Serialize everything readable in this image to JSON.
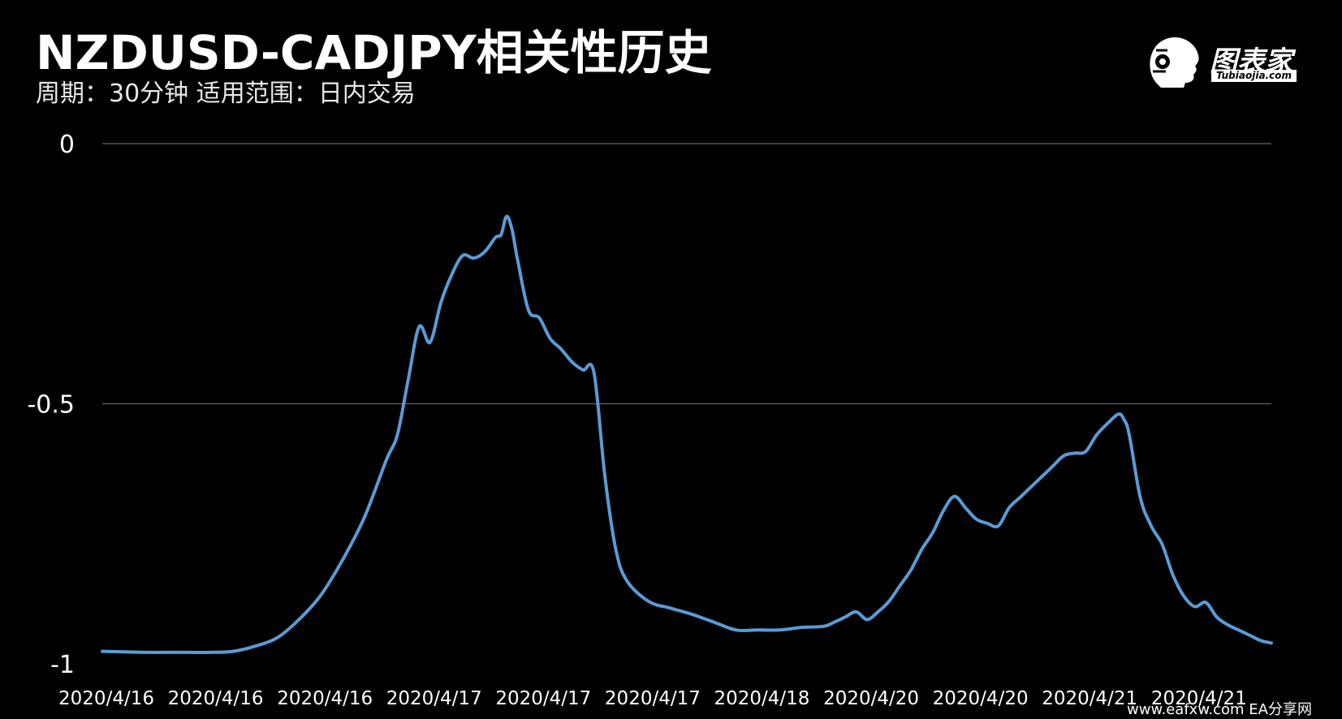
{
  "header": {
    "title": "NZDUSD-CADJPY相关性历史",
    "subtitle": "周期：30分钟  适用范围：日内交易"
  },
  "logo": {
    "name": "图表家",
    "sub": "Tubiaojia.com"
  },
  "watermark": "www.eafxw.com   EA分享网",
  "colors": {
    "background": "#000000",
    "line": "#5b9bd5",
    "grid": "#555555",
    "text": "#ffffff"
  },
  "chart_data": {
    "type": "line",
    "title": "NZDUSD-CADJPY相关性历史",
    "xlabel": "",
    "ylabel": "",
    "ylim": [
      -1,
      0
    ],
    "yticks": [
      {
        "value": 0,
        "label": "0"
      },
      {
        "value": -0.5,
        "label": "-0.5"
      },
      {
        "value": -1,
        "label": "-1"
      }
    ],
    "xticks": [
      {
        "x": 0,
        "label": "2020/4/16"
      },
      {
        "x": 10,
        "label": "2020/4/16"
      },
      {
        "x": 20,
        "label": "2020/4/16"
      },
      {
        "x": 30,
        "label": "2020/4/17"
      },
      {
        "x": 40,
        "label": "2020/4/17"
      },
      {
        "x": 50,
        "label": "2020/4/17"
      },
      {
        "x": 60,
        "label": "2020/4/18"
      },
      {
        "x": 70,
        "label": "2020/4/20"
      },
      {
        "x": 80,
        "label": "2020/4/20"
      },
      {
        "x": 90,
        "label": "2020/4/21"
      },
      {
        "x": 100,
        "label": "2020/4/21"
      }
    ],
    "grid": true,
    "legend": "none",
    "series": [
      {
        "points": [
          [
            0,
            -0.976
          ],
          [
            2,
            -0.977
          ],
          [
            4,
            -0.978
          ],
          [
            6,
            -0.978
          ],
          [
            8,
            -0.978
          ],
          [
            10,
            -0.978
          ],
          [
            12,
            -0.976
          ],
          [
            14,
            -0.966
          ],
          [
            16,
            -0.95
          ],
          [
            18,
            -0.915
          ],
          [
            20,
            -0.868
          ],
          [
            22,
            -0.8
          ],
          [
            24,
            -0.718
          ],
          [
            26,
            -0.608
          ],
          [
            27,
            -0.56
          ],
          [
            28,
            -0.454
          ],
          [
            29,
            -0.352
          ],
          [
            30,
            -0.382
          ],
          [
            31,
            -0.305
          ],
          [
            32,
            -0.251
          ],
          [
            33,
            -0.215
          ],
          [
            34,
            -0.22
          ],
          [
            35,
            -0.208
          ],
          [
            36,
            -0.18
          ],
          [
            36.5,
            -0.175
          ],
          [
            37,
            -0.14
          ],
          [
            37.5,
            -0.165
          ],
          [
            38,
            -0.222
          ],
          [
            39,
            -0.32
          ],
          [
            40,
            -0.335
          ],
          [
            41,
            -0.375
          ],
          [
            42,
            -0.395
          ],
          [
            43,
            -0.42
          ],
          [
            44,
            -0.435
          ],
          [
            45,
            -0.44
          ],
          [
            46,
            -0.64
          ],
          [
            47,
            -0.78
          ],
          [
            48,
            -0.84
          ],
          [
            50,
            -0.88
          ],
          [
            52,
            -0.893
          ],
          [
            54,
            -0.905
          ],
          [
            56,
            -0.92
          ],
          [
            58,
            -0.935
          ],
          [
            60,
            -0.935
          ],
          [
            62,
            -0.935
          ],
          [
            64,
            -0.93
          ],
          [
            66,
            -0.928
          ],
          [
            67,
            -0.92
          ],
          [
            68,
            -0.91
          ],
          [
            69,
            -0.9
          ],
          [
            70,
            -0.915
          ],
          [
            71,
            -0.9
          ],
          [
            72,
            -0.88
          ],
          [
            73,
            -0.85
          ],
          [
            74,
            -0.82
          ],
          [
            75,
            -0.78
          ],
          [
            76,
            -0.748
          ],
          [
            77,
            -0.705
          ],
          [
            78,
            -0.678
          ],
          [
            79,
            -0.7
          ],
          [
            80,
            -0.722
          ],
          [
            81,
            -0.73
          ],
          [
            82,
            -0.735
          ],
          [
            83,
            -0.7
          ],
          [
            84,
            -0.68
          ],
          [
            85,
            -0.66
          ],
          [
            86,
            -0.64
          ],
          [
            87,
            -0.62
          ],
          [
            88,
            -0.6
          ],
          [
            89,
            -0.595
          ],
          [
            90,
            -0.592
          ],
          [
            91,
            -0.56
          ],
          [
            92,
            -0.538
          ],
          [
            93,
            -0.52
          ],
          [
            93.5,
            -0.53
          ],
          [
            94,
            -0.56
          ],
          [
            95,
            -0.68
          ],
          [
            96,
            -0.735
          ],
          [
            97,
            -0.77
          ],
          [
            98,
            -0.83
          ],
          [
            99,
            -0.87
          ],
          [
            100,
            -0.89
          ],
          [
            101,
            -0.882
          ],
          [
            102,
            -0.91
          ],
          [
            103,
            -0.925
          ],
          [
            104,
            -0.935
          ],
          [
            105,
            -0.945
          ],
          [
            106,
            -0.955
          ],
          [
            107,
            -0.96
          ]
        ]
      }
    ]
  }
}
